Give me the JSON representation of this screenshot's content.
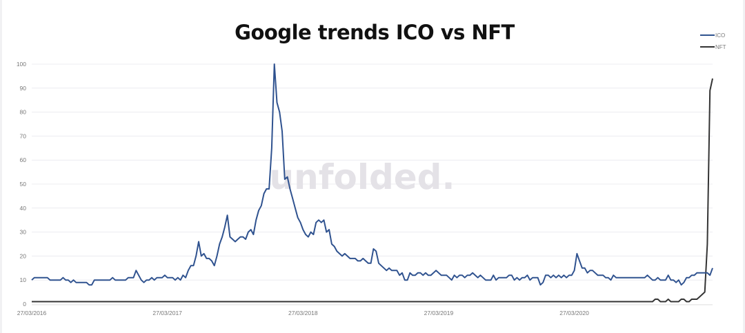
{
  "chart_data": {
    "type": "line",
    "title": "Google trends ICO vs NFT",
    "watermark": "unfolded.",
    "x_tick_labels": [
      "27/03/2016",
      "27/03/2017",
      "27/03/2018",
      "27/03/2019",
      "27/03/2020"
    ],
    "x_frequency": "weekly",
    "ylim": [
      0,
      100
    ],
    "y_ticks": [
      0,
      10,
      20,
      30,
      40,
      50,
      60,
      70,
      80,
      90,
      100
    ],
    "grid": true,
    "legend": "top-right",
    "series": [
      {
        "name": "ICO",
        "color": "#2f528f",
        "values": [
          10,
          11,
          11,
          11,
          11,
          11,
          11,
          10,
          10,
          10,
          10,
          10,
          11,
          10,
          10,
          9,
          10,
          9,
          9,
          9,
          9,
          9,
          8,
          8,
          10,
          10,
          10,
          10,
          10,
          10,
          10,
          11,
          10,
          10,
          10,
          10,
          10,
          11,
          11,
          11,
          14,
          12,
          10,
          9,
          10,
          10,
          11,
          10,
          11,
          11,
          11,
          12,
          11,
          11,
          11,
          10,
          11,
          10,
          12,
          11,
          14,
          16,
          16,
          20,
          26,
          20,
          21,
          19,
          19,
          18,
          16,
          20,
          25,
          28,
          32,
          37,
          28,
          27,
          26,
          27,
          28,
          28,
          27,
          30,
          31,
          29,
          35,
          39,
          41,
          46,
          48,
          48,
          65,
          100,
          84,
          80,
          72,
          52,
          53,
          48,
          44,
          40,
          36,
          34,
          31,
          29,
          28,
          30,
          29,
          34,
          35,
          34,
          35,
          30,
          31,
          25,
          24,
          22,
          21,
          20,
          21,
          20,
          19,
          19,
          19,
          18,
          18,
          19,
          18,
          17,
          17,
          23,
          22,
          17,
          16,
          15,
          14,
          15,
          14,
          14,
          14,
          12,
          13,
          10,
          10,
          13,
          12,
          12,
          13,
          13,
          12,
          13,
          12,
          12,
          13,
          14,
          13,
          12,
          12,
          12,
          11,
          10,
          12,
          11,
          12,
          12,
          11,
          12,
          12,
          13,
          12,
          11,
          12,
          11,
          10,
          10,
          10,
          12,
          10,
          11,
          11,
          11,
          11,
          12,
          12,
          10,
          11,
          10,
          11,
          11,
          12,
          10,
          11,
          11,
          11,
          8,
          9,
          12,
          12,
          11,
          12,
          11,
          12,
          11,
          12,
          11,
          12,
          12,
          14,
          21,
          18,
          15,
          15,
          13,
          14,
          14,
          13,
          12,
          12,
          12,
          11,
          11,
          10,
          12,
          11,
          11,
          11,
          11,
          11,
          11,
          11,
          11,
          11,
          11,
          11,
          11,
          12,
          11,
          10,
          10,
          11,
          10,
          10,
          10,
          12,
          10,
          10,
          9,
          10,
          8,
          9,
          11,
          11,
          12,
          12,
          13,
          13,
          13,
          13,
          13,
          12,
          15
        ]
      },
      {
        "name": "NFT",
        "color": "#333333",
        "values": [
          1,
          1,
          1,
          1,
          1,
          1,
          1,
          1,
          1,
          1,
          1,
          1,
          1,
          1,
          1,
          1,
          1,
          1,
          1,
          1,
          1,
          1,
          1,
          1,
          1,
          1,
          1,
          1,
          1,
          1,
          1,
          1,
          1,
          1,
          1,
          1,
          1,
          1,
          1,
          1,
          1,
          1,
          1,
          1,
          1,
          1,
          1,
          1,
          1,
          1,
          1,
          1,
          1,
          1,
          1,
          1,
          1,
          1,
          1,
          1,
          1,
          1,
          1,
          1,
          1,
          1,
          1,
          1,
          1,
          1,
          1,
          1,
          1,
          1,
          1,
          1,
          1,
          1,
          1,
          1,
          1,
          1,
          1,
          1,
          1,
          1,
          1,
          1,
          1,
          1,
          1,
          1,
          1,
          1,
          1,
          1,
          1,
          1,
          1,
          1,
          1,
          1,
          1,
          1,
          1,
          1,
          1,
          1,
          1,
          1,
          1,
          1,
          1,
          1,
          1,
          1,
          1,
          1,
          1,
          1,
          1,
          1,
          1,
          1,
          1,
          1,
          1,
          1,
          1,
          1,
          1,
          1,
          1,
          1,
          1,
          1,
          1,
          1,
          1,
          1,
          1,
          1,
          1,
          1,
          1,
          1,
          1,
          1,
          1,
          1,
          1,
          1,
          1,
          1,
          1,
          1,
          1,
          1,
          1,
          1,
          1,
          1,
          1,
          1,
          1,
          1,
          1,
          1,
          1,
          1,
          1,
          1,
          1,
          1,
          1,
          1,
          1,
          1,
          1,
          1,
          1,
          1,
          1,
          1,
          1,
          1,
          1,
          1,
          1,
          1,
          1,
          1,
          1,
          1,
          1,
          1,
          1,
          1,
          1,
          1,
          1,
          1,
          1,
          1,
          1,
          1,
          1,
          1,
          1,
          1,
          1,
          1,
          1,
          1,
          1,
          1,
          1,
          1,
          1,
          1,
          1,
          1,
          1,
          1,
          1,
          1,
          1,
          1,
          1,
          1,
          1,
          1,
          1,
          1,
          1,
          1,
          1,
          1,
          1,
          2,
          2,
          1,
          1,
          1,
          2,
          1,
          1,
          1,
          1,
          2,
          2,
          1,
          1,
          2,
          2,
          2,
          3,
          4,
          5,
          25,
          89,
          94
        ]
      }
    ]
  }
}
